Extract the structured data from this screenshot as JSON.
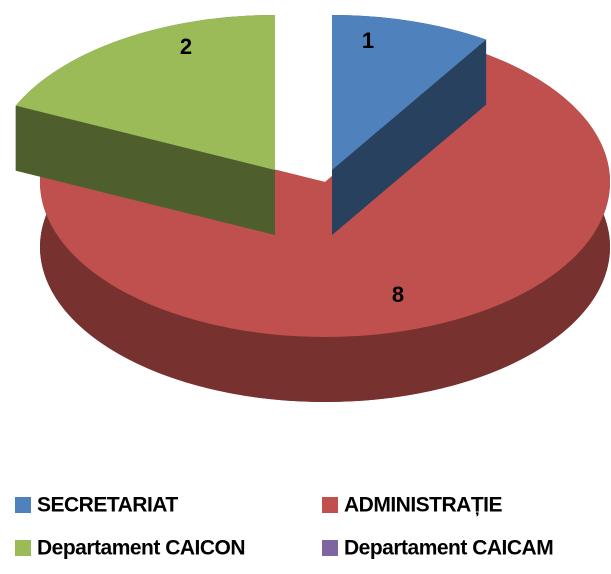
{
  "chart_data": {
    "type": "pie",
    "categories": [
      "SECRETARIAT",
      "ADMINISTRAȚIE",
      "Departament CAICON",
      "Departament CAICAM"
    ],
    "values": [
      1,
      8,
      2,
      0
    ],
    "colors": [
      "#4f81bd",
      "#c0504d",
      "#9bbb59",
      "#8064a2"
    ],
    "legend": "bottom"
  }
}
